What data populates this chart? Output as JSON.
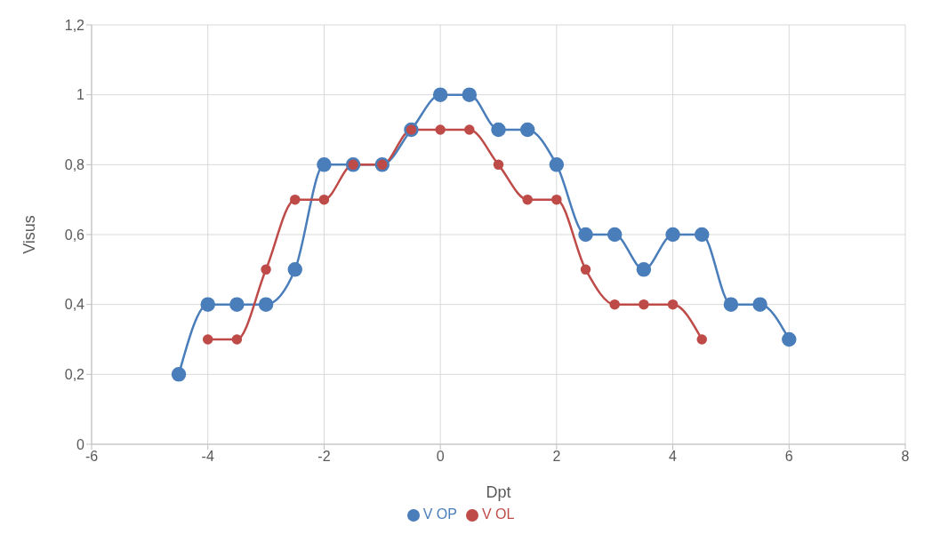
{
  "chart_data": {
    "type": "line",
    "xlabel": "Dpt",
    "ylabel": "Visus",
    "xlim": [
      -6,
      8
    ],
    "xticks": [
      -6,
      -4,
      -2,
      0,
      2,
      4,
      6,
      8
    ],
    "ylim": [
      0,
      1.2
    ],
    "yticks": [
      0,
      {
        "value": 0.2,
        "label": "0,2"
      },
      {
        "value": 0.4,
        "label": "0,4"
      },
      {
        "value": 0.6,
        "label": "0,6"
      },
      {
        "value": 0.8,
        "label": "0,8"
      },
      1,
      {
        "value": 1.2,
        "label": "1,2"
      }
    ],
    "grid": true,
    "legend": "bottom",
    "marker": "circle",
    "line_style": "solid",
    "series": [
      {
        "name": "V OP",
        "color": "#4a7ebb",
        "x": [
          -4.5,
          -4,
          -3.5,
          -3,
          -2.5,
          -2,
          -1.5,
          -1,
          -0.5,
          0,
          0.5,
          1,
          1.5,
          2,
          2.5,
          3,
          3.5,
          4,
          4.5,
          5,
          5.5,
          6
        ],
        "values": [
          0.2,
          0.4,
          0.4,
          0.4,
          0.5,
          0.8,
          0.8,
          0.8,
          0.9,
          1,
          1,
          0.9,
          0.9,
          0.8,
          0.6,
          0.6,
          0.5,
          0.6,
          0.6,
          0.4,
          0.4,
          0.3
        ]
      },
      {
        "name": "V OL",
        "color": "#be4b48",
        "x": [
          -4,
          -3.5,
          -3,
          -2.5,
          -2,
          -1.5,
          -1,
          -0.5,
          0,
          0.5,
          1,
          1.5,
          2,
          2.5,
          3,
          3.5,
          4,
          4.5
        ],
        "values": [
          0.3,
          0.3,
          0.5,
          0.7,
          0.7,
          0.8,
          0.8,
          0.9,
          0.9,
          0.9,
          0.8,
          0.7,
          0.7,
          0.5,
          0.4,
          0.4,
          0.4,
          0.3
        ]
      }
    ]
  }
}
